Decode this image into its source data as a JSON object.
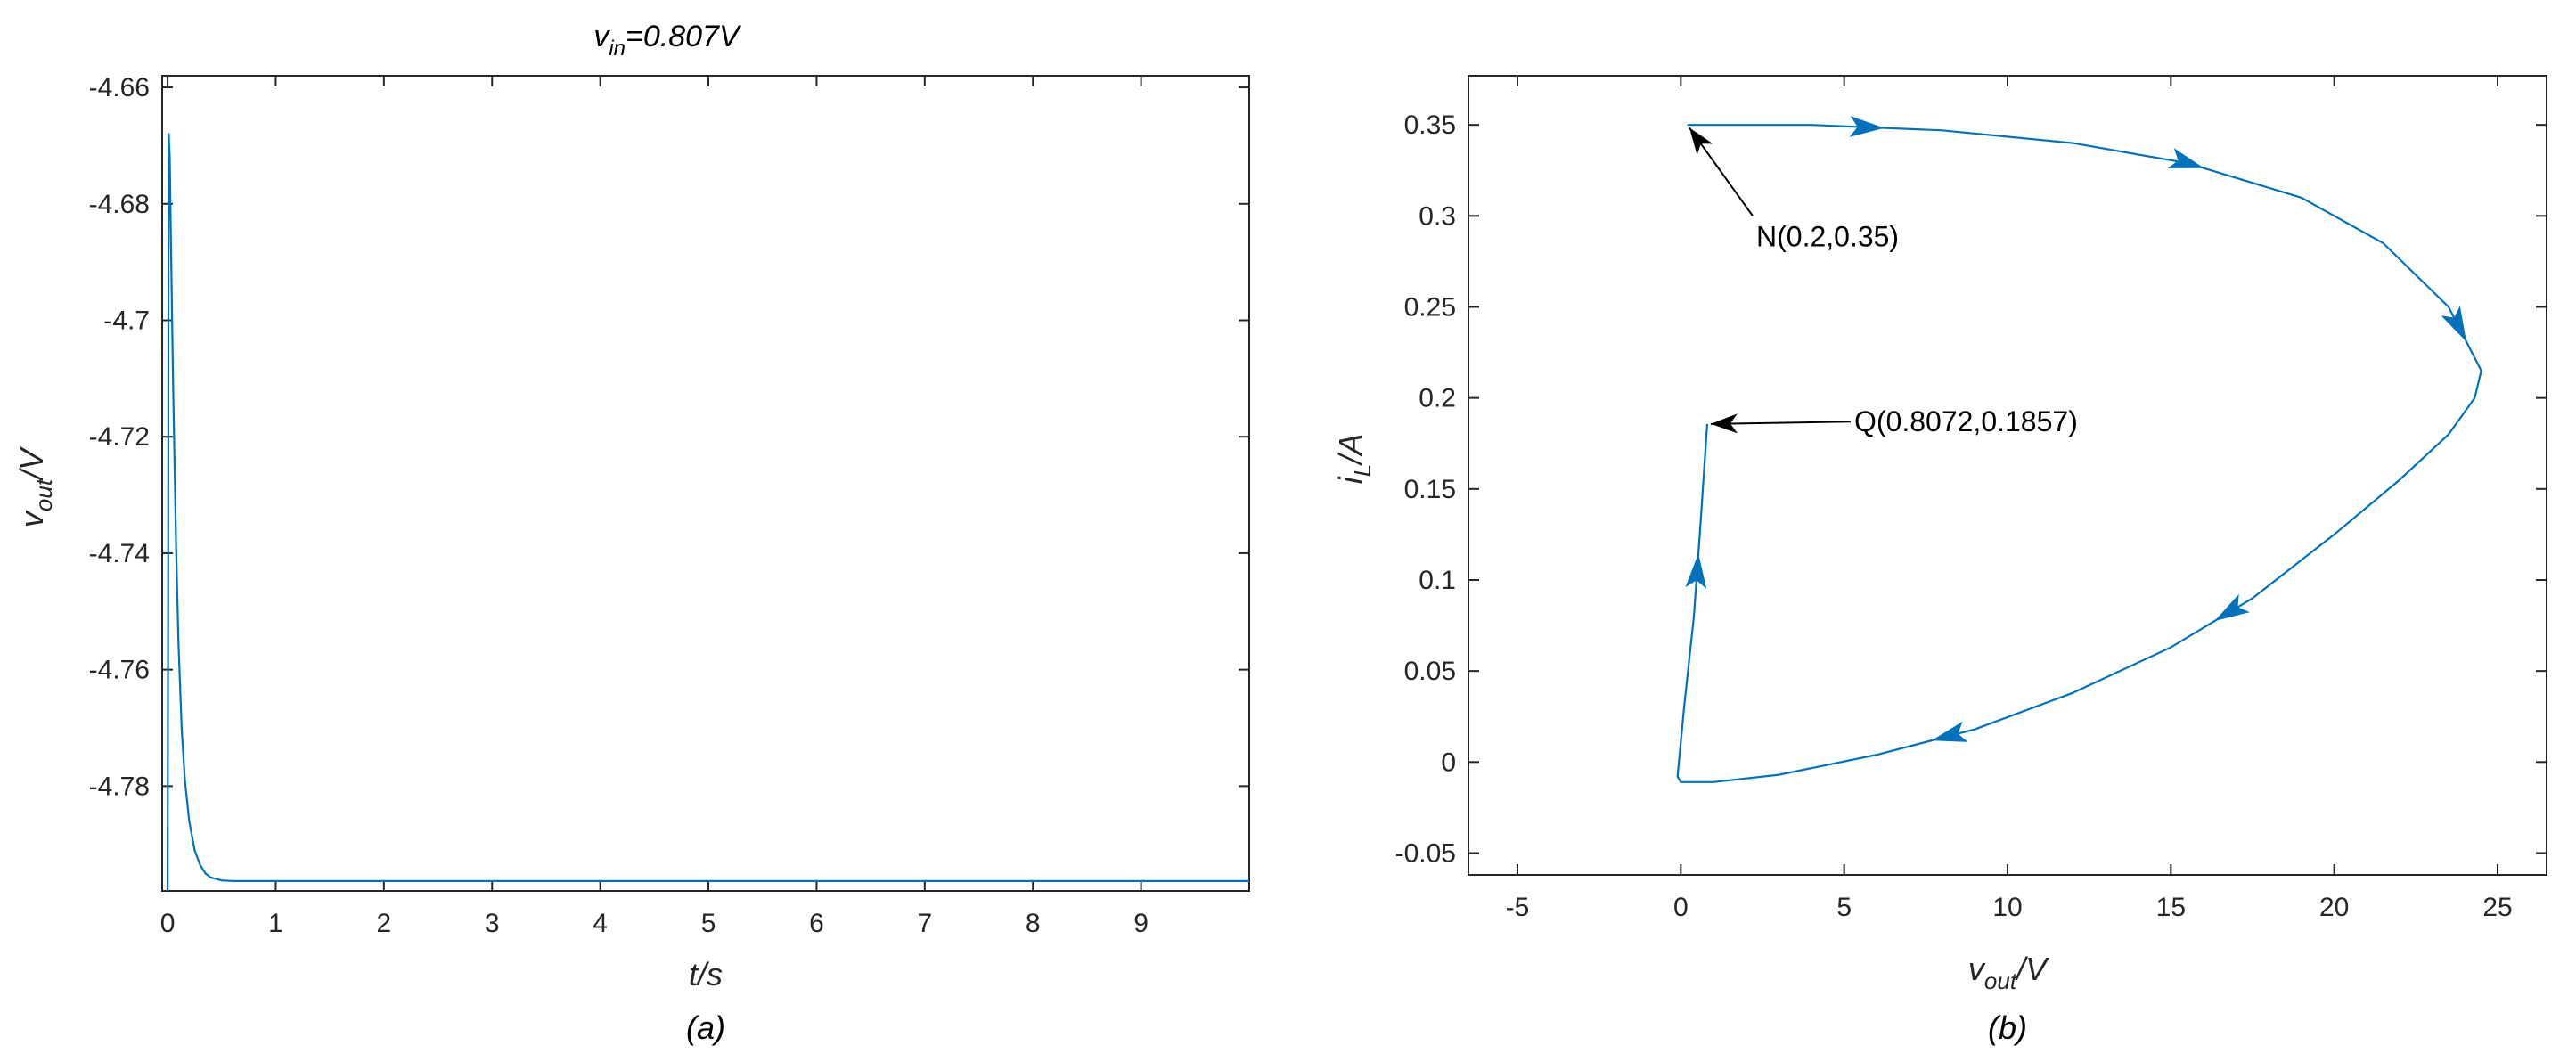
{
  "chart_data": [
    {
      "type": "line",
      "title": "=0.807V",
      "title_var": "v",
      "title_sub": "in",
      "xlabel": "t/s",
      "ylabel_var": "v",
      "ylabel_sub": "out",
      "ylabel_unit": "/V",
      "caption": "(a)",
      "xlim": [
        -0.05,
        10
      ],
      "ylim": [
        -4.798,
        -4.658
      ],
      "xticks": [
        0,
        1,
        2,
        3,
        4,
        5,
        6,
        7,
        8,
        9
      ],
      "xtick_labels": [
        "0",
        "1",
        "2",
        "3",
        "4",
        "5",
        "6",
        "7",
        "8",
        "9"
      ],
      "yticks": [
        -4.66,
        -4.68,
        -4.7,
        -4.72,
        -4.74,
        -4.76,
        -4.78
      ],
      "ytick_labels": [
        "-4.66",
        "-4.68",
        "-4.7",
        "-4.72",
        "-4.74",
        "-4.76",
        "-4.78"
      ],
      "color": "#0072BD",
      "series": [
        {
          "x": [
            0,
            0.005,
            0.01,
            0.02,
            0.03,
            0.05,
            0.08,
            0.1,
            0.13,
            0.16,
            0.2,
            0.25,
            0.3,
            0.35,
            0.4,
            0.5,
            0.6,
            0.8,
            1,
            2,
            4,
            6,
            8,
            10
          ],
          "y": [
            -4.798,
            -4.75,
            -4.668,
            -4.672,
            -4.685,
            -4.71,
            -4.74,
            -4.755,
            -4.77,
            -4.779,
            -4.786,
            -4.791,
            -4.7935,
            -4.795,
            -4.7957,
            -4.7962,
            -4.7963,
            -4.7963,
            -4.7963,
            -4.7963,
            -4.7963,
            -4.7963,
            -4.7963,
            -4.7963
          ]
        }
      ]
    },
    {
      "type": "line",
      "xlabel_var": "v",
      "xlabel_sub": "out",
      "xlabel_unit": "/V",
      "ylabel_var": "i",
      "ylabel_sub": "L",
      "ylabel_unit": "/A",
      "caption": "(b)",
      "xlim": [
        -6.5,
        26.5
      ],
      "ylim": [
        -0.062,
        0.377
      ],
      "xticks": [
        -5,
        0,
        5,
        10,
        15,
        20,
        25
      ],
      "xtick_labels": [
        "-5",
        "0",
        "5",
        "10",
        "15",
        "20",
        "25"
      ],
      "yticks": [
        -0.05,
        0,
        0.05,
        0.1,
        0.15,
        0.2,
        0.25,
        0.3,
        0.35
      ],
      "ytick_labels": [
        "-0.05",
        "0",
        "0.05",
        "0.1",
        "0.15",
        "0.2",
        "0.25",
        "0.3",
        "0.35"
      ],
      "color": "#0072BD",
      "series": [
        {
          "x": [
            0.2,
            4,
            8,
            12,
            15.5,
            19,
            21.5,
            23.5,
            24.5,
            24.3,
            23.5,
            22,
            20,
            17.5,
            15,
            12,
            9,
            6,
            3,
            1,
            0,
            -0.1,
            0.1,
            0.4,
            0.6,
            0.8072
          ],
          "y": [
            0.35,
            0.35,
            0.347,
            0.34,
            0.329,
            0.31,
            0.285,
            0.25,
            0.215,
            0.2,
            0.18,
            0.155,
            0.125,
            0.09,
            0.063,
            0.038,
            0.018,
            0.004,
            -0.007,
            -0.011,
            -0.011,
            -0.008,
            0.03,
            0.08,
            0.13,
            0.1857
          ]
        }
      ],
      "arrows_along_path_at_x": [
        5.7,
        15.5,
        23.8,
        16.8,
        8.2,
        0.5
      ],
      "annotations": [
        {
          "text": "N(0.2,0.35)",
          "point": [
            0.2,
            0.35
          ],
          "label_at": [
            2.2,
            0.3
          ]
        },
        {
          "text": "Q(0.8072,0.1857)",
          "point": [
            0.8072,
            0.1857
          ],
          "label_at": [
            5.2,
            0.187
          ]
        }
      ]
    }
  ]
}
